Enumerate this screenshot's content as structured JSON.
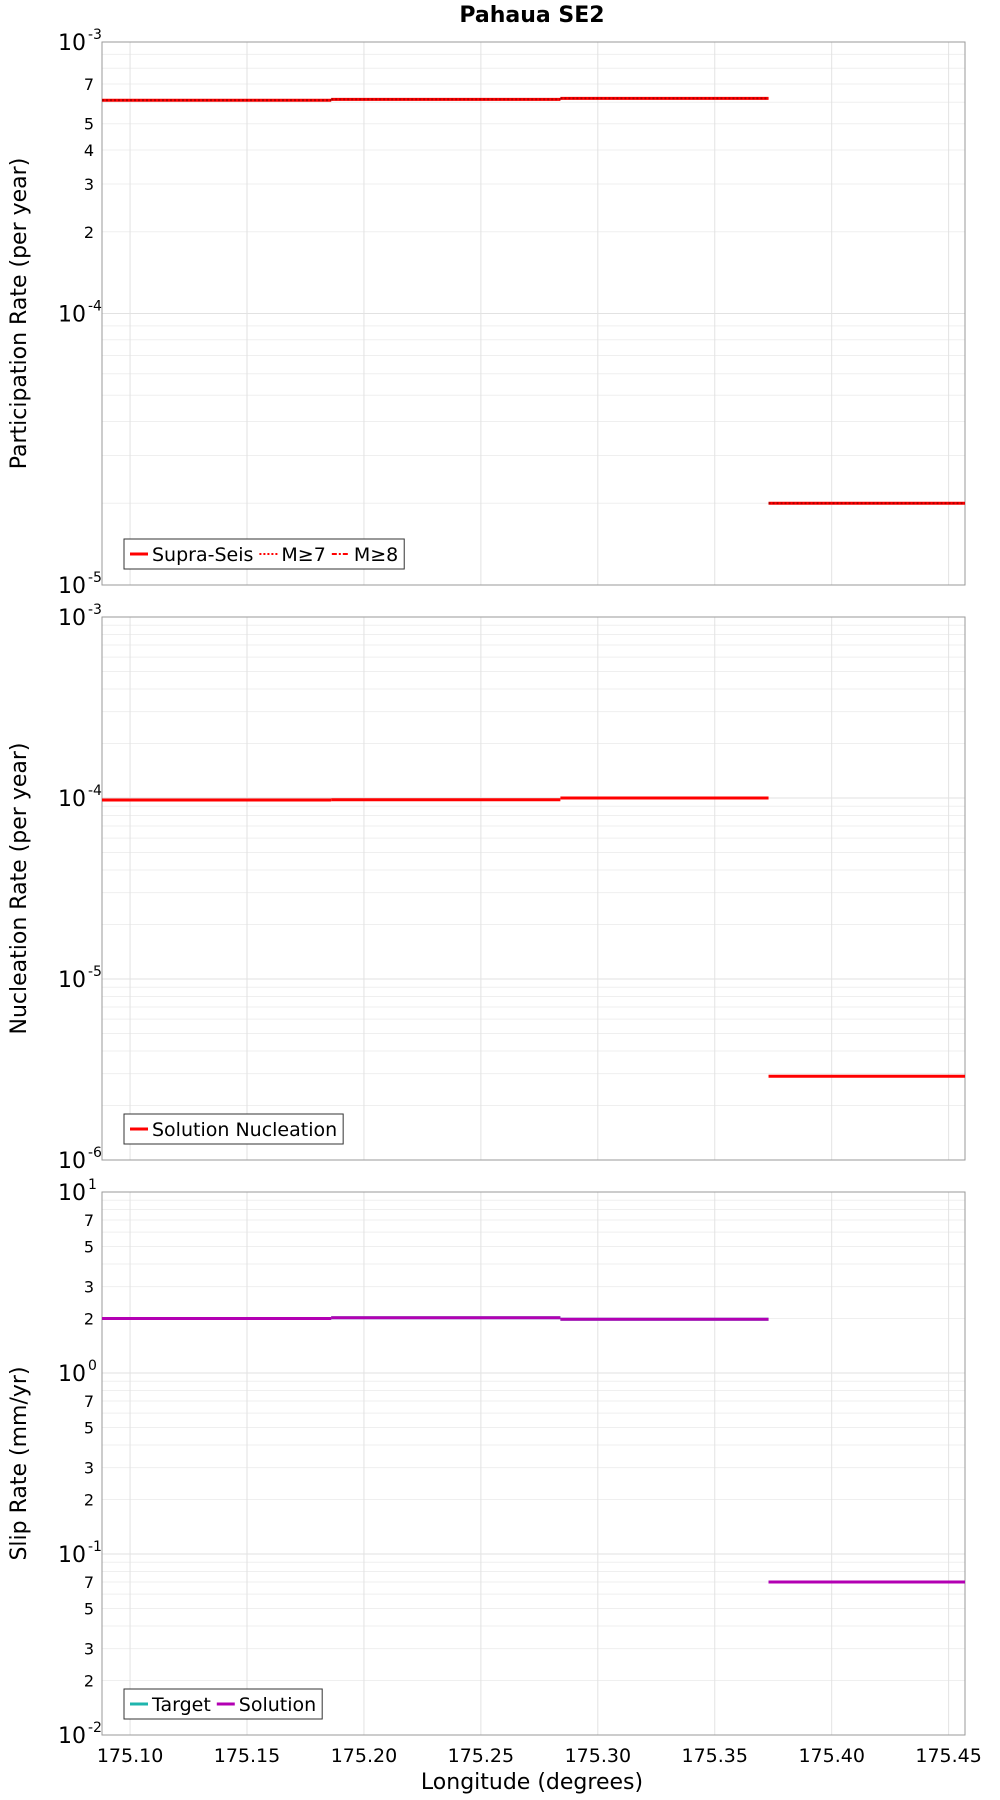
{
  "figure_title": "Pahaua SE2",
  "x_axis_label": "Longitude (degrees)",
  "chart_data": [
    {
      "type": "line",
      "panel": "participation",
      "title": "Pahaua SE2",
      "ylabel": "Participation Rate (per year)",
      "yscale": "log",
      "ylim": [
        1e-05,
        0.001
      ],
      "xlim": [
        175.088,
        175.457
      ],
      "x_ticks": [
        175.1,
        175.15,
        175.2,
        175.25,
        175.3,
        175.35,
        175.4,
        175.45
      ],
      "x_tick_labels": [
        "175.10",
        "175.15",
        "175.20",
        "175.25",
        "175.30",
        "175.35",
        "175.40",
        "175.45"
      ],
      "y_major_labels": [
        {
          "value": 0.001,
          "base": "10",
          "exp": "-3"
        },
        {
          "value": 0.0001,
          "base": "10",
          "exp": "-4"
        },
        {
          "value": 1e-05,
          "base": "10",
          "exp": "-5"
        }
      ],
      "y_minor_labels": [
        "7",
        "5",
        "4",
        "3",
        "2"
      ],
      "segment_edges": [
        175.088,
        175.186,
        175.284,
        175.373,
        175.457
      ],
      "series": [
        {
          "name": "Supra-Seis",
          "color": "#ff0000",
          "style": "solid",
          "values": [
            0.00061,
            0.000615,
            0.00062,
            2e-05
          ]
        },
        {
          "name": "M≥7",
          "color": "#ff0000",
          "style": "dotted",
          "values": [
            0.00061,
            0.000615,
            0.00062,
            2e-05
          ]
        },
        {
          "name": "M≥8",
          "color": "#ff0000",
          "style": "dashdot",
          "values": []
        }
      ],
      "legend_position": "bottom-left"
    },
    {
      "type": "line",
      "panel": "nucleation",
      "ylabel": "Nucleation Rate (per year)",
      "yscale": "log",
      "ylim": [
        1e-06,
        0.001
      ],
      "xlim": [
        175.088,
        175.457
      ],
      "y_major_labels": [
        {
          "value": 0.001,
          "base": "10",
          "exp": "-3"
        },
        {
          "value": 0.0001,
          "base": "10",
          "exp": "-4"
        },
        {
          "value": 1e-05,
          "base": "10",
          "exp": "-5"
        },
        {
          "value": 1e-06,
          "base": "10",
          "exp": "-6"
        }
      ],
      "segment_edges": [
        175.088,
        175.186,
        175.284,
        175.373,
        175.457
      ],
      "series": [
        {
          "name": "Solution Nucleation",
          "color": "#ff0000",
          "style": "solid",
          "values": [
            9.75e-05,
            9.78e-05,
            0.0001,
            2.9e-06
          ]
        }
      ],
      "legend_position": "bottom-left"
    },
    {
      "type": "line",
      "panel": "slip",
      "ylabel": "Slip Rate (mm/yr)",
      "xlabel": "Longitude (degrees)",
      "yscale": "log",
      "ylim": [
        0.01,
        10
      ],
      "xlim": [
        175.088,
        175.457
      ],
      "y_major_labels": [
        {
          "value": 10,
          "base": "10",
          "exp": "1"
        },
        {
          "value": 1,
          "base": "10",
          "exp": "0"
        },
        {
          "value": 0.1,
          "base": "10",
          "exp": "-1"
        },
        {
          "value": 0.01,
          "base": "10",
          "exp": "-2"
        }
      ],
      "y_minor_labels": [
        "7",
        "5",
        "3",
        "2",
        "7",
        "5",
        "3",
        "2",
        "7",
        "5",
        "3",
        "2"
      ],
      "segment_edges": [
        175.088,
        175.186,
        175.284,
        175.373,
        175.457
      ],
      "series": [
        {
          "name": "Target",
          "color": "#1fb5ad",
          "style": "solid",
          "values": [
            2.0,
            2.02,
            1.98,
            0.07
          ]
        },
        {
          "name": "Solution",
          "color": "#b300b3",
          "style": "solid",
          "values": [
            2.0,
            2.02,
            1.98,
            0.07
          ]
        }
      ],
      "legend_position": "bottom-left"
    }
  ]
}
